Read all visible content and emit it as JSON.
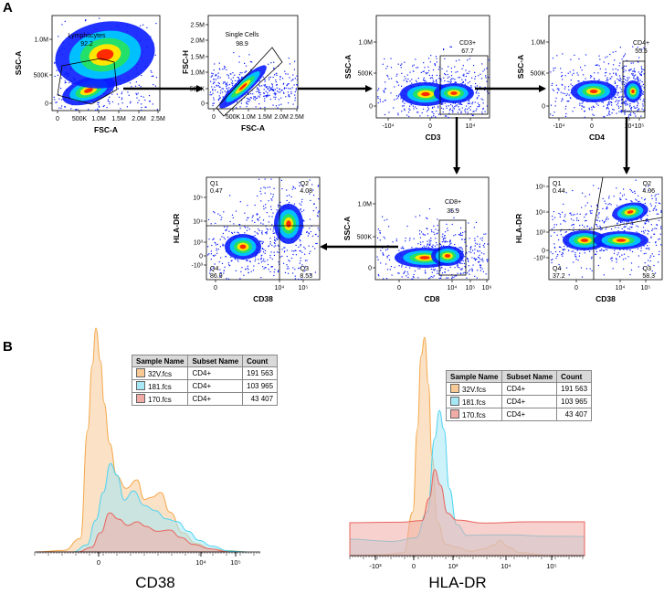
{
  "panels": {
    "a": "A",
    "b": "B"
  },
  "colors": {
    "density": [
      "#0a1cff",
      "#00c8ff",
      "#22e06a",
      "#ffe600",
      "#ff2a00"
    ],
    "sample_32V": "#f5a84a",
    "sample_181": "#4fd3f0",
    "sample_170": "#e8655f"
  },
  "chart_data": [
    {
      "type": "scatter",
      "id": "fsc_ssc",
      "xlabel": "FSC-A",
      "ylabel": "SSC-A",
      "xticks": [
        "0",
        "500K",
        "1.0M",
        "1.5M",
        "2.0M",
        "2.5M"
      ],
      "yticks": [
        "0",
        "500K",
        "1.0M"
      ],
      "gate": {
        "name": "Lymphocytes",
        "value": "92.2"
      }
    },
    {
      "type": "scatter",
      "id": "fsc_fsch",
      "xlabel": "FSC-A",
      "ylabel": "FSC-H",
      "xticks": [
        "0",
        "500K",
        "1.0M",
        "1.5M",
        "2.0M",
        "2.5M"
      ],
      "yticks": [
        "0",
        "500K",
        "1.0M",
        "1.5M",
        "2.0M",
        "2.5M"
      ],
      "gate": {
        "name": "Single Cells",
        "value": "98.9"
      }
    },
    {
      "type": "scatter",
      "id": "cd3_ssc",
      "xlabel": "CD3",
      "ylabel": "SSC-A",
      "xticks": [
        "-10⁴",
        "0",
        "10⁴"
      ],
      "yticks": [
        "0",
        "500K",
        "1.0M"
      ],
      "gate": {
        "name": "CD3+",
        "value": "67.7"
      }
    },
    {
      "type": "scatter",
      "id": "cd4_ssc",
      "xlabel": "CD4",
      "ylabel": "SSC-A",
      "xticks": [
        "-10⁴",
        "0",
        "10⁴",
        "10⁵"
      ],
      "yticks": [
        "0",
        "500K",
        "1.0M"
      ],
      "gate": {
        "name": "CD4+",
        "value": "55.5"
      }
    },
    {
      "type": "scatter",
      "id": "cd8_ssc",
      "xlabel": "CD8",
      "ylabel": "SSC-A",
      "xticks": [
        "0",
        "10⁴",
        "10⁵",
        "10⁶"
      ],
      "yticks": [
        "0",
        "500K",
        "1.0M"
      ],
      "gate": {
        "name": "CD8+",
        "value": "35.9"
      }
    },
    {
      "type": "scatter",
      "id": "cd38_hladr_cd8",
      "xlabel": "CD38",
      "ylabel": "HLA-DR",
      "xticks": [
        "0",
        "10⁴",
        "10⁵"
      ],
      "yticks": [
        "-10³",
        "0",
        "10³",
        "10⁴",
        "10⁵"
      ],
      "quadrants": [
        {
          "name": "Q1",
          "value": "0.47"
        },
        {
          "name": "Q2",
          "value": "4.08"
        },
        {
          "name": "Q3",
          "value": "8.53"
        },
        {
          "name": "Q4",
          "value": "86.9"
        }
      ]
    },
    {
      "type": "scatter",
      "id": "cd38_hladr_cd4",
      "xlabel": "CD38",
      "ylabel": "HLA-DR",
      "xticks": [
        "0",
        "10⁴",
        "10⁵"
      ],
      "yticks": [
        "-10³",
        "0",
        "10³",
        "10⁴",
        "10⁵"
      ],
      "quadrants": [
        {
          "name": "Q1",
          "value": "0.44"
        },
        {
          "name": "Q2",
          "value": "4.06"
        },
        {
          "name": "Q3",
          "value": "58.3"
        },
        {
          "name": "Q4",
          "value": "37.2"
        }
      ]
    },
    {
      "type": "area",
      "id": "hist_cd38",
      "xlabel": "CD38",
      "xticks": [
        "0",
        "10⁴",
        "10⁵"
      ],
      "legend": {
        "headers": [
          "Sample Name",
          "Subset Name",
          "Count"
        ],
        "rows": [
          {
            "sample": "32V.fcs",
            "subset": "CD4+",
            "count": "191 563"
          },
          {
            "sample": "181.fcs",
            "subset": "CD4+",
            "count": "103 965"
          },
          {
            "sample": "170.fcs",
            "subset": "CD4+",
            "count": "43 407"
          }
        ]
      }
    },
    {
      "type": "area",
      "id": "hist_hladr",
      "xlabel": "HLA-DR",
      "xticks": [
        "-10³",
        "0",
        "10³",
        "10⁴",
        "10⁵"
      ],
      "legend": {
        "headers": [
          "Sample Name",
          "Subset Name",
          "Count"
        ],
        "rows": [
          {
            "sample": "32V.fcs",
            "subset": "CD4+",
            "count": "191 563"
          },
          {
            "sample": "181.fcs",
            "subset": "CD4+",
            "count": "103 965"
          },
          {
            "sample": "170.fcs",
            "subset": "CD4+",
            "count": "43 407"
          }
        ]
      }
    }
  ]
}
